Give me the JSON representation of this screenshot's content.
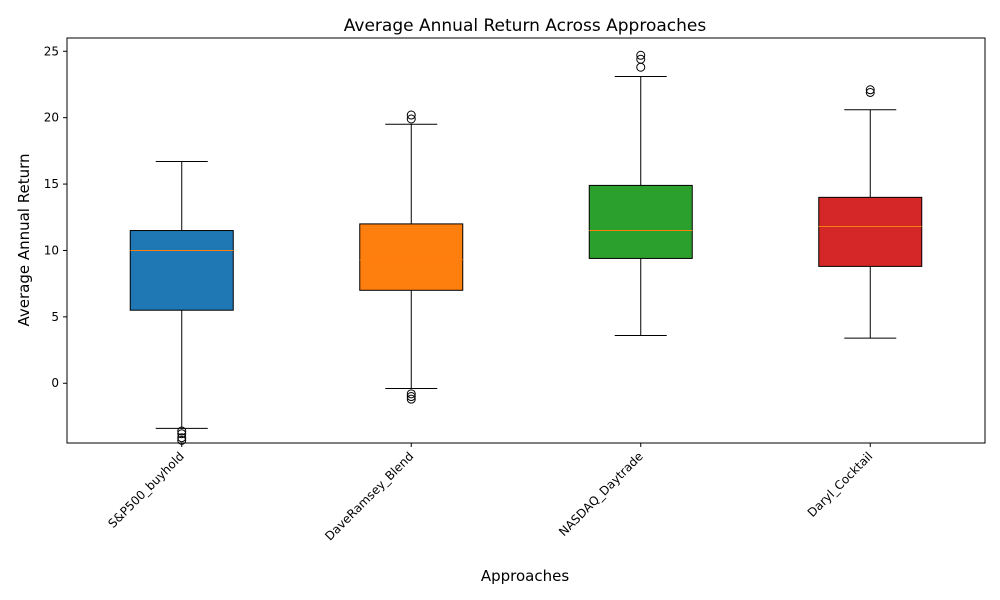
{
  "chart_data": {
    "type": "box",
    "title": "Average Annual Return Across Approaches",
    "xlabel": "Approaches",
    "ylabel": "Average Annual Return",
    "ylim": [
      -4.5,
      26
    ],
    "yticks": [
      0,
      5,
      10,
      15,
      20,
      25
    ],
    "grid": false,
    "legend": "none",
    "categories": [
      "S&P500_buyhold",
      "DaveRamsey_Blend",
      "NASDAQ_Daytrade",
      "Daryl_Cocktail"
    ],
    "boxes": [
      {
        "category": "S&P500_buyhold",
        "color": "#1f77b4",
        "whisker_low": -3.4,
        "q1": 5.5,
        "median": 10.0,
        "q3": 11.5,
        "whisker_high": 16.7,
        "outliers": [
          -3.6,
          -3.8,
          -4.1,
          -4.3
        ]
      },
      {
        "category": "DaveRamsey_Blend",
        "color": "#ff7f0e",
        "whisker_low": -0.4,
        "q1": 7.0,
        "median": 9.3,
        "q3": 12.0,
        "whisker_high": 19.5,
        "outliers": [
          -0.8,
          -1.0,
          -1.2,
          19.9,
          20.2
        ]
      },
      {
        "category": "NASDAQ_Daytrade",
        "color": "#2ca02c",
        "whisker_low": 3.6,
        "q1": 9.4,
        "median": 11.5,
        "q3": 14.9,
        "whisker_high": 23.1,
        "outliers": [
          23.8,
          24.4,
          24.7
        ]
      },
      {
        "category": "Daryl_Cocktail",
        "color": "#d62728",
        "whisker_low": 3.4,
        "q1": 8.8,
        "median": 11.8,
        "q3": 14.0,
        "whisker_high": 20.6,
        "outliers": [
          21.9,
          22.1
        ]
      }
    ],
    "median_color": "#ff7f0e"
  }
}
